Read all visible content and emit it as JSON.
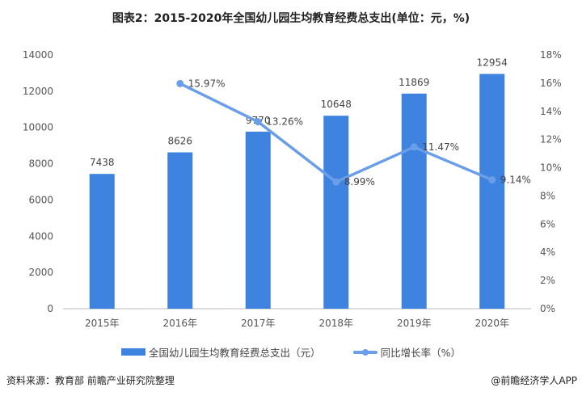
{
  "title": "图表2：2015-2020年全国幼儿园生均教育经费总支出(单位：元，%)",
  "chart_data": {
    "type": "bar+line",
    "categories": [
      "2015年",
      "2016年",
      "2017年",
      "2018年",
      "2019年",
      "2020年"
    ],
    "series": [
      {
        "name": "全国幼儿园生均教育经费总支出（元）",
        "type": "bar",
        "axis": "left",
        "values": [
          7438,
          8626,
          9770,
          10648,
          11869,
          12954
        ],
        "labels": [
          "7438",
          "8626",
          "9770",
          "10648",
          "11869",
          "12954"
        ],
        "color": "#3f83e0"
      },
      {
        "name": "同比增长率（%）",
        "type": "line",
        "axis": "right",
        "values": [
          null,
          15.97,
          13.26,
          8.99,
          11.47,
          9.14
        ],
        "labels": [
          "",
          "15.97%",
          "13.26%",
          "8.99%",
          "11.47%",
          "9.14%"
        ],
        "color": "#6a9ee8"
      }
    ],
    "left_axis": {
      "ylim": [
        0,
        14000
      ],
      "ticks": [
        "0",
        "2000",
        "4000",
        "6000",
        "8000",
        "10000",
        "12000",
        "14000"
      ]
    },
    "right_axis": {
      "ylim": [
        0,
        18
      ],
      "ticks": [
        "0%",
        "2%",
        "4%",
        "6%",
        "8%",
        "10%",
        "12%",
        "14%",
        "16%",
        "18%"
      ]
    },
    "legend": "bottom"
  },
  "source": "资料来源：教育部 前瞻产业研究院整理",
  "brand": "@前瞻经济学人APP"
}
